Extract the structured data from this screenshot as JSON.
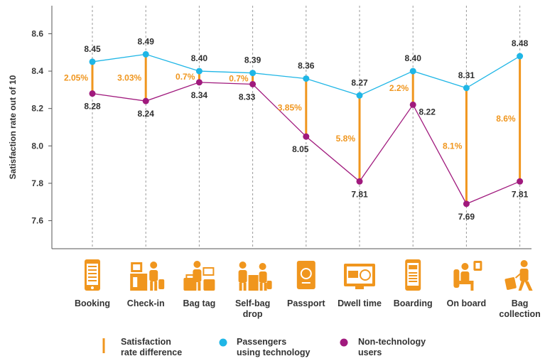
{
  "chart_data": {
    "type": "line",
    "ylabel": "Satisfaction rate out of 10",
    "ylim": [
      7.45,
      8.75
    ],
    "yticks": [
      "7.6",
      "7.8",
      "8.0",
      "8.2",
      "8.4",
      "8.6"
    ],
    "grid": false,
    "categories": [
      [
        "Booking"
      ],
      [
        "Check-in"
      ],
      [
        "Bag tag"
      ],
      [
        "Self-bag",
        "drop"
      ],
      [
        "Passport"
      ],
      [
        "Dwell time"
      ],
      [
        "Boarding"
      ],
      [
        "On board"
      ],
      [
        "Bag",
        "collection"
      ]
    ],
    "series": [
      {
        "name": "Passengers using technology",
        "color": "#1fb6e6",
        "values": [
          8.45,
          8.49,
          8.4,
          8.39,
          8.36,
          8.27,
          8.4,
          8.31,
          8.48
        ],
        "labels": [
          "8.45",
          "8.49",
          "8.40",
          "8.39",
          "8.36",
          "8.27",
          "8.40",
          "8.31",
          "8.48"
        ]
      },
      {
        "name": "Non-technology users",
        "color": "#a0197d",
        "values": [
          8.28,
          8.24,
          8.34,
          8.33,
          8.05,
          7.81,
          8.22,
          7.69,
          7.81
        ],
        "labels": [
          "8.28",
          "8.24",
          "8.34",
          "8.33",
          "8.05",
          "7.81",
          "8.22",
          "7.69",
          "7.81"
        ]
      }
    ],
    "differences": [
      "2.05%",
      "3.03%",
      "0.7%",
      "0.7%",
      "3.85%",
      "5.8%",
      "2.2%",
      "8.1%",
      "8.6%"
    ],
    "difference_color": "#f0961e",
    "icons": [
      "phone-booking-icon",
      "check-in-desk-icon",
      "bag-tag-icon",
      "self-bag-drop-icon",
      "passport-icon",
      "dwell-time-screen-icon",
      "boarding-pass-icon",
      "on-board-seat-icon",
      "bag-collection-icon"
    ],
    "icon_color": "#f0961e",
    "legend": [
      {
        "key": "difference",
        "label": [
          "Satisfaction",
          "rate difference"
        ],
        "color": "#f0961e"
      },
      {
        "key": "tech",
        "label": [
          "Passengers",
          "using technology"
        ],
        "color": "#1fb6e6"
      },
      {
        "key": "nontech",
        "label": [
          "Non-technology",
          "users"
        ],
        "color": "#a0197d"
      }
    ],
    "legend_position": "bottom"
  }
}
